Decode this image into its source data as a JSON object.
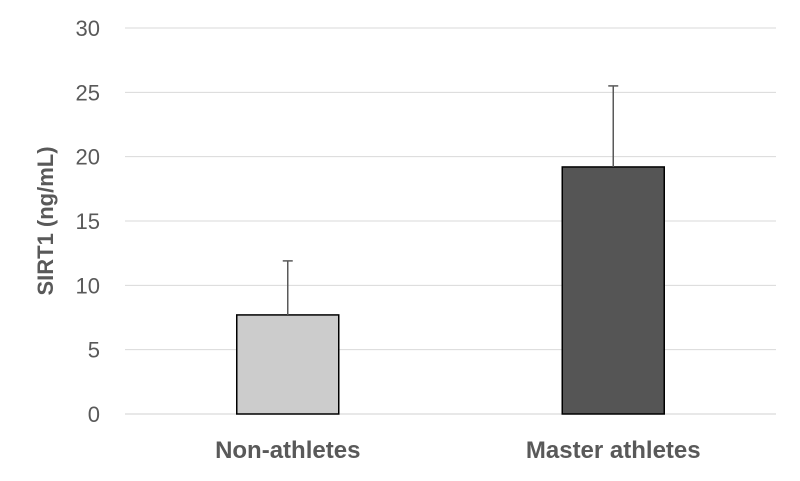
{
  "chart_data": {
    "type": "bar",
    "title": "",
    "xlabel": "",
    "ylabel": "SIRT1 (ng/mL)",
    "ylim": [
      0,
      30
    ],
    "yticks": [
      0,
      5,
      10,
      15,
      20,
      25,
      30
    ],
    "grid": true,
    "legend": "none",
    "categories": [
      "Non-athletes",
      "Master athletes"
    ],
    "values": [
      7.7,
      19.2
    ],
    "error_upper": [
      4.2,
      6.3
    ],
    "bar_colors": [
      "#cccccc",
      "#555555"
    ]
  }
}
